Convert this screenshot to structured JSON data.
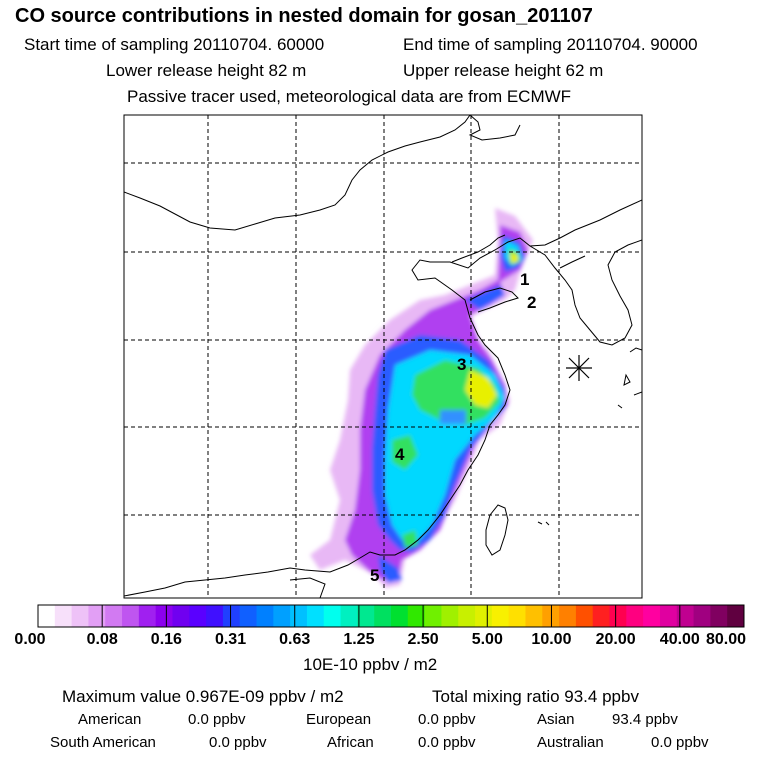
{
  "header": {
    "title": "CO  source contributions in nested domain for gosan_201107",
    "start_time": "Start time of sampling 20110704. 60000",
    "end_time": "End time of sampling 20110704. 90000",
    "lower_release": "Lower release height   82 m",
    "upper_release": "Upper release height   62 m",
    "tracer_note": "Passive tracer used, meteorological data are from ECMWF"
  },
  "map": {
    "receptor_marker": "asterisk-receptor",
    "region_labels": [
      "1",
      "2",
      "3",
      "4",
      "5"
    ],
    "coastline_color": "#000000",
    "grid": "dashed"
  },
  "colorbar": {
    "tick_labels": [
      "0.00",
      "0.08",
      "0.16",
      "0.31",
      "0.63",
      "1.25",
      "2.50",
      "5.00",
      "10.00",
      "20.00",
      "40.00",
      "80.00"
    ],
    "colors": [
      "#ffffff",
      "#f7e0fa",
      "#eec2f7",
      "#e29ff5",
      "#d27af2",
      "#bf55f0",
      "#a020f0",
      "#8c00ee",
      "#7000f0",
      "#5a00ff",
      "#4010ff",
      "#2040ff",
      "#1060ff",
      "#0080ff",
      "#00a0ff",
      "#00c0ff",
      "#00e0ff",
      "#00ffee",
      "#00f0c0",
      "#00e890",
      "#00e060",
      "#00e030",
      "#30e800",
      "#70f000",
      "#a0f000",
      "#c8f000",
      "#e0f000",
      "#f8f000",
      "#ffe000",
      "#ffc000",
      "#ffa000",
      "#ff8000",
      "#ff5000",
      "#ff2020",
      "#ff0050",
      "#ff0080",
      "#ff00a0",
      "#e000a0",
      "#c00090",
      "#a00080",
      "#800060",
      "#600040"
    ],
    "unit": "10E-10 ppbv / m2"
  },
  "stats": {
    "max_value": "Maximum value  0.967E-09 ppbv / m2",
    "total_mixing": "Total mixing ratio       93.4 ppbv",
    "american": "American",
    "american_val": "0.0 ppbv",
    "european": "European",
    "european_val": "0.0 ppbv",
    "asian": "Asian",
    "asian_val": "93.4 ppbv",
    "south_american": "South American",
    "south_american_val": "0.0 ppbv",
    "african": "African",
    "african_val": "0.0 ppbv",
    "australian": "Australian",
    "australian_val": "0.0 ppbv"
  }
}
